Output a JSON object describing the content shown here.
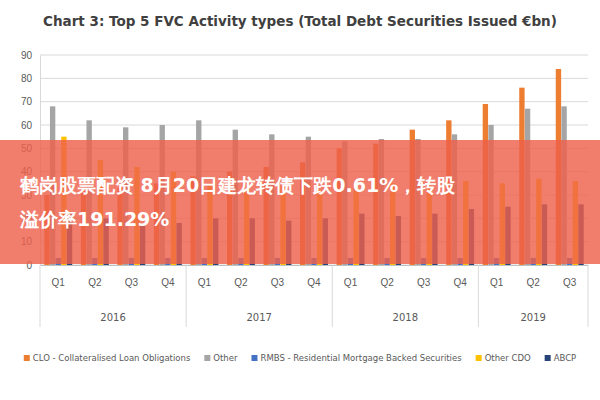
{
  "chart_data": {
    "type": "bar",
    "title": "Chart 3: Top 5 FVC Activity types (Total Debt Securities Issued €bn)",
    "categories": [
      "Q1",
      "Q2",
      "Q3",
      "Q4",
      "Q1",
      "Q2",
      "Q3",
      "Q4",
      "Q1",
      "Q2",
      "Q3",
      "Q4",
      "Q1",
      "Q2",
      "Q3"
    ],
    "category_groups": [
      "2016",
      "2016",
      "2016",
      "2016",
      "2017",
      "2017",
      "2017",
      "2017",
      "2018",
      "2018",
      "2018",
      "2018",
      "2019",
      "2019",
      "2019"
    ],
    "series": [
      {
        "name": "CLO - Collateralised Loan Obligations",
        "color": "#ed7d31",
        "values": [
          30,
          32,
          33,
          35,
          38,
          40,
          42,
          44,
          50,
          52,
          58,
          62,
          69,
          76,
          84
        ]
      },
      {
        "name": "Other",
        "color": "#a5a5a5",
        "values": [
          68,
          62,
          59,
          60,
          62,
          58,
          56,
          55,
          53,
          54,
          54,
          56,
          60,
          67,
          68
        ]
      },
      {
        "name": "RMBS - Residential Mortgage Backed Securities",
        "color": "#4472c4",
        "values": [
          3,
          3,
          3,
          3,
          3,
          3,
          3,
          3,
          3,
          3,
          3,
          3,
          3,
          3,
          3
        ]
      },
      {
        "name": "Other CDO",
        "color": "#ffc000",
        "values": [
          55,
          45,
          42,
          40,
          35,
          33,
          34,
          32,
          33,
          35,
          34,
          36,
          35,
          37,
          36
        ]
      },
      {
        "name": "ABCP",
        "color": "#264478",
        "values": [
          22,
          20,
          17,
          18,
          20,
          20,
          19,
          20,
          22,
          21,
          22,
          24,
          25,
          26,
          26
        ]
      }
    ],
    "ylim": [
      0,
      90
    ],
    "yticks": [
      0,
      10,
      20,
      30,
      40,
      50,
      60,
      70,
      80,
      90
    ],
    "grid": true,
    "legend": "bottom",
    "annotation_lines": [
      "鹤岗股票配资 8月20日建龙转债下跌0.61%，转股",
      "溢价率191.29%"
    ]
  }
}
